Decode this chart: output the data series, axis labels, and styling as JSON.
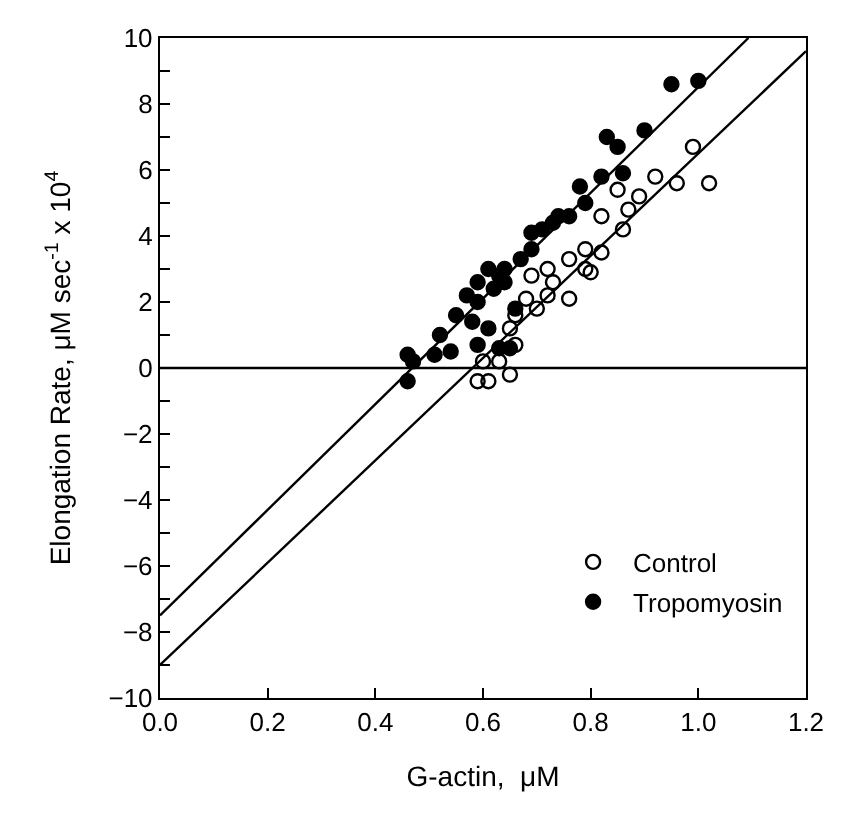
{
  "chart_data": {
    "type": "scatter",
    "xlabel": "G-actin,  μM",
    "ylabel": "Elongation Rate, μM sec$^{-1}$ x 10$^{4}$",
    "xlim": [
      0,
      1.2
    ],
    "ylim": [
      -10,
      10
    ],
    "xticks": [
      {
        "value": 0,
        "label": "0.0"
      },
      {
        "value": 0.2,
        "label": "0.2"
      },
      {
        "value": 0.4,
        "label": "0.4"
      },
      {
        "value": 0.6,
        "label": "0.6"
      },
      {
        "value": 0.8,
        "label": "0.8"
      },
      {
        "value": 1.0,
        "label": "1.0"
      },
      {
        "value": 1.2,
        "label": "1.2"
      }
    ],
    "yticks": [
      -10,
      {
        "value": -9,
        "label": null
      },
      -8,
      {
        "value": -7,
        "label": null
      },
      -6,
      {
        "value": -5,
        "label": null
      },
      -4,
      {
        "value": -3,
        "label": null
      },
      -2,
      {
        "value": -1,
        "label": null
      },
      0,
      {
        "value": 1,
        "label": null
      },
      2,
      {
        "value": 3,
        "label": null
      },
      4,
      {
        "value": 5,
        "label": null
      },
      6,
      {
        "value": 7,
        "label": null
      },
      8,
      {
        "value": 9,
        "label": null
      },
      10
    ],
    "legend": "bottom right",
    "ref_lines": [
      {
        "axis": "y",
        "value": 0,
        "color": "#000000"
      }
    ],
    "series": [
      {
        "name": "Control",
        "color": "#000000",
        "marker": "circle",
        "x": [
          1.02,
          0.99,
          0.96,
          0.92,
          0.89,
          0.87,
          0.85,
          0.86,
          0.82,
          0.82,
          0.8,
          0.79,
          0.79,
          0.76,
          0.76,
          0.73,
          0.72,
          0.7,
          0.68,
          0.66,
          0.65,
          0.66,
          0.65,
          0.61,
          0.59,
          0.63,
          0.6,
          0.69,
          0.72
        ],
        "values": [
          5.6,
          6.7,
          5.6,
          5.8,
          5.2,
          4.8,
          5.4,
          4.2,
          4.6,
          3.5,
          2.9,
          3.6,
          3.0,
          3.3,
          2.1,
          2.6,
          2.2,
          1.8,
          2.1,
          1.6,
          1.2,
          0.7,
          -0.2,
          -0.4,
          -0.4,
          0.2,
          0.2,
          2.8,
          3.0
        ]
      },
      {
        "name": "Tropomyosin",
        "color": "#000000",
        "marker": "circle",
        "x": [
          1.0,
          0.95,
          0.9,
          0.85,
          0.83,
          0.86,
          0.82,
          0.78,
          0.79,
          0.76,
          0.74,
          0.73,
          0.71,
          0.69,
          0.69,
          0.67,
          0.64,
          0.61,
          0.59,
          0.62,
          0.64,
          0.57,
          0.59,
          0.55,
          0.58,
          0.61,
          0.63,
          0.65,
          0.52,
          0.51,
          0.59,
          0.46,
          0.46,
          0.47,
          0.63,
          0.66,
          0.54
        ],
        "values": [
          8.7,
          8.6,
          7.2,
          6.7,
          7.0,
          5.9,
          5.8,
          5.5,
          5.0,
          4.6,
          4.6,
          4.4,
          4.2,
          4.1,
          3.6,
          3.3,
          3.0,
          3.0,
          2.6,
          2.4,
          2.6,
          2.2,
          2.0,
          1.6,
          1.4,
          1.2,
          0.6,
          0.6,
          1.0,
          0.4,
          0.7,
          0.4,
          -0.4,
          0.2,
          2.8,
          1.8,
          0.5
        ]
      },
      {
        "type": "line",
        "color": "#000000",
        "x": [
          0,
          1.093
        ],
        "values": [
          -7.5,
          10
        ]
      },
      {
        "type": "line",
        "color": "#000000",
        "x": [
          0,
          1.2
        ],
        "values": [
          -9,
          9.6
        ]
      }
    ]
  }
}
